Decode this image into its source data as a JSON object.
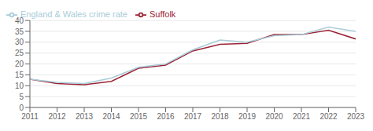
{
  "chart_data": {
    "type": "line",
    "x": [
      2011,
      2012,
      2013,
      2014,
      2015,
      2016,
      2017,
      2018,
      2019,
      2020,
      2021,
      2022,
      2023
    ],
    "series": [
      {
        "name": "Suffolk",
        "color": "#9b2335",
        "values": [
          13.0,
          11.0,
          10.5,
          12.0,
          18.0,
          19.5,
          26.0,
          29.0,
          29.5,
          33.5,
          33.5,
          35.5,
          31.5
        ]
      },
      {
        "name": "England & Wales crime rate",
        "color": "#a8ccd8",
        "values": [
          13.0,
          11.5,
          11.0,
          13.5,
          18.5,
          20.0,
          26.5,
          31.0,
          30.0,
          33.0,
          33.5,
          37.0,
          35.0
        ]
      }
    ],
    "xlim": [
      2011,
      2023
    ],
    "xticks": [
      2011,
      2012,
      2013,
      2014,
      2015,
      2016,
      2017,
      2018,
      2019,
      2020,
      2021,
      2022,
      2023
    ],
    "ylim": [
      0,
      40
    ],
    "yticks": [
      0,
      5,
      10,
      15,
      20,
      25,
      30,
      35,
      40
    ],
    "grid": true,
    "legend": "upper left"
  }
}
